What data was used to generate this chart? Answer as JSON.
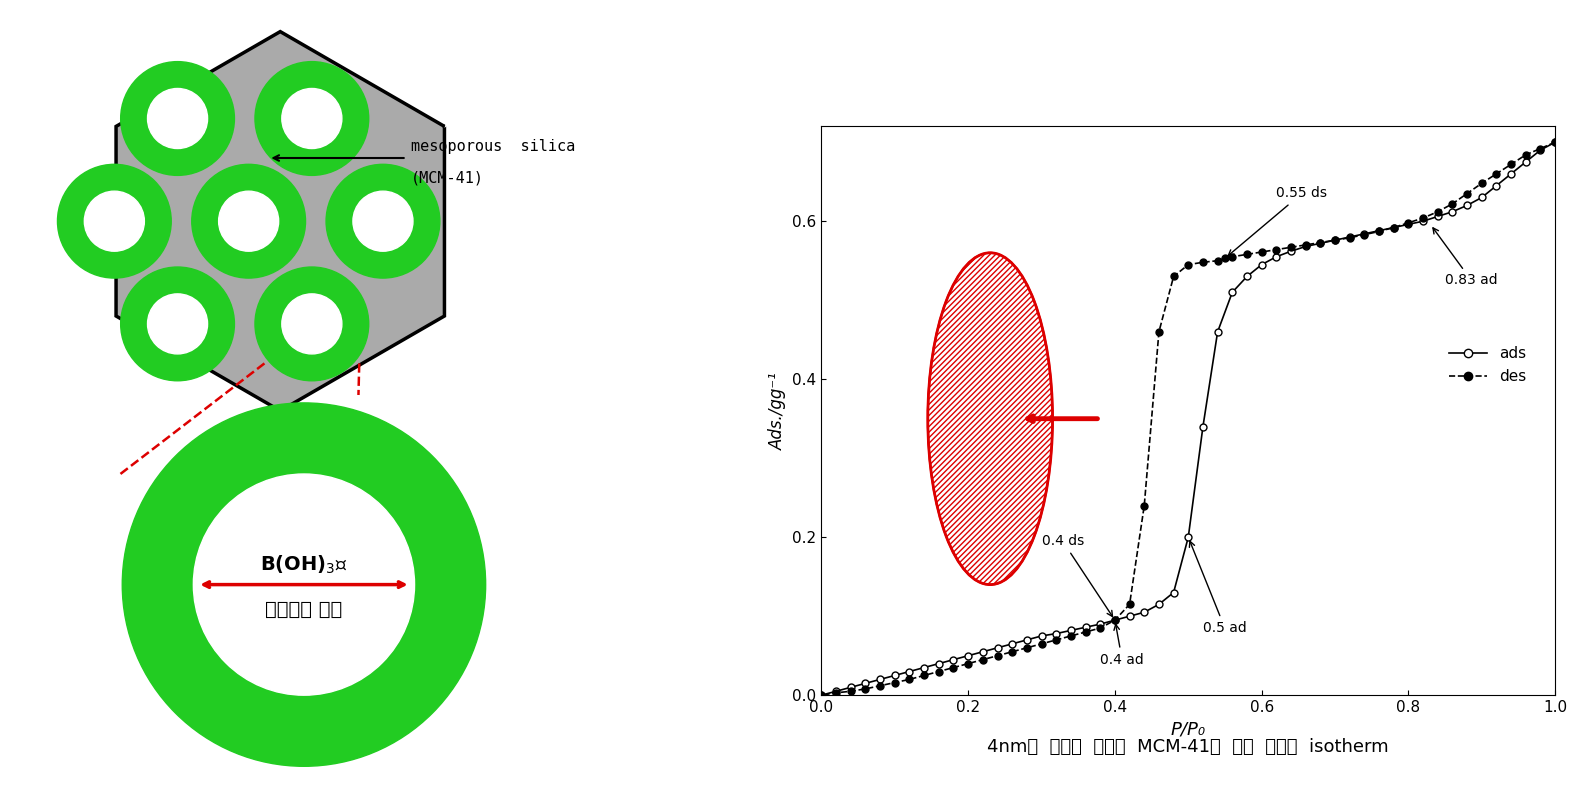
{
  "bg_color": "#ffffff",
  "green_color": "#22cc22",
  "gray_color": "#aaaaaa",
  "red_color": "#dd0000",
  "black_color": "#000000",
  "ads_x": [
    0.0,
    0.02,
    0.04,
    0.06,
    0.08,
    0.1,
    0.12,
    0.14,
    0.16,
    0.18,
    0.2,
    0.22,
    0.24,
    0.26,
    0.28,
    0.3,
    0.32,
    0.34,
    0.36,
    0.38,
    0.4,
    0.42,
    0.44,
    0.46,
    0.48,
    0.5,
    0.52,
    0.54,
    0.56,
    0.58,
    0.6,
    0.62,
    0.64,
    0.66,
    0.68,
    0.7,
    0.72,
    0.74,
    0.76,
    0.78,
    0.8,
    0.82,
    0.84,
    0.86,
    0.88,
    0.9,
    0.92,
    0.94,
    0.96,
    0.98,
    1.0
  ],
  "ads_y": [
    0.0,
    0.005,
    0.01,
    0.015,
    0.02,
    0.025,
    0.03,
    0.035,
    0.04,
    0.045,
    0.05,
    0.055,
    0.06,
    0.065,
    0.07,
    0.075,
    0.078,
    0.082,
    0.086,
    0.09,
    0.095,
    0.1,
    0.105,
    0.115,
    0.13,
    0.2,
    0.34,
    0.46,
    0.51,
    0.53,
    0.545,
    0.555,
    0.562,
    0.568,
    0.572,
    0.576,
    0.58,
    0.584,
    0.588,
    0.592,
    0.596,
    0.6,
    0.606,
    0.612,
    0.62,
    0.63,
    0.645,
    0.66,
    0.675,
    0.69,
    0.7
  ],
  "des_x": [
    1.0,
    0.98,
    0.96,
    0.94,
    0.92,
    0.9,
    0.88,
    0.86,
    0.84,
    0.82,
    0.8,
    0.78,
    0.76,
    0.74,
    0.72,
    0.7,
    0.68,
    0.66,
    0.64,
    0.62,
    0.6,
    0.58,
    0.56,
    0.55,
    0.54,
    0.52,
    0.5,
    0.48,
    0.46,
    0.44,
    0.42,
    0.4,
    0.38,
    0.36,
    0.34,
    0.32,
    0.3,
    0.28,
    0.26,
    0.24,
    0.22,
    0.2,
    0.18,
    0.16,
    0.14,
    0.12,
    0.1,
    0.08,
    0.06,
    0.04,
    0.02,
    0.0
  ],
  "des_y": [
    0.7,
    0.692,
    0.684,
    0.672,
    0.66,
    0.648,
    0.635,
    0.622,
    0.612,
    0.604,
    0.598,
    0.592,
    0.587,
    0.583,
    0.579,
    0.576,
    0.573,
    0.57,
    0.567,
    0.564,
    0.561,
    0.558,
    0.555,
    0.553,
    0.55,
    0.548,
    0.545,
    0.53,
    0.46,
    0.24,
    0.115,
    0.095,
    0.085,
    0.08,
    0.075,
    0.07,
    0.065,
    0.06,
    0.055,
    0.05,
    0.045,
    0.04,
    0.035,
    0.03,
    0.025,
    0.02,
    0.016,
    0.012,
    0.008,
    0.005,
    0.003,
    0.0
  ],
  "ylabel": "Ads./gg⁻¹",
  "xlabel": "P/P₀",
  "caption": "4nm의  기공을  가지는  MCM-41의  수분  흡탈착  isotherm",
  "annotation_055ds": "0.55 ds",
  "annotation_083ad": "0.83 ad",
  "annotation_04ds": "0.4 ds",
  "annotation_04ad": "0.4 ad",
  "annotation_05ad": "0.5 ad",
  "label_ads": "ads",
  "label_des": "des",
  "ylim_max": 0.72,
  "ylim_min": 0.0,
  "xlim_min": 0.0,
  "xlim_max": 1.0
}
